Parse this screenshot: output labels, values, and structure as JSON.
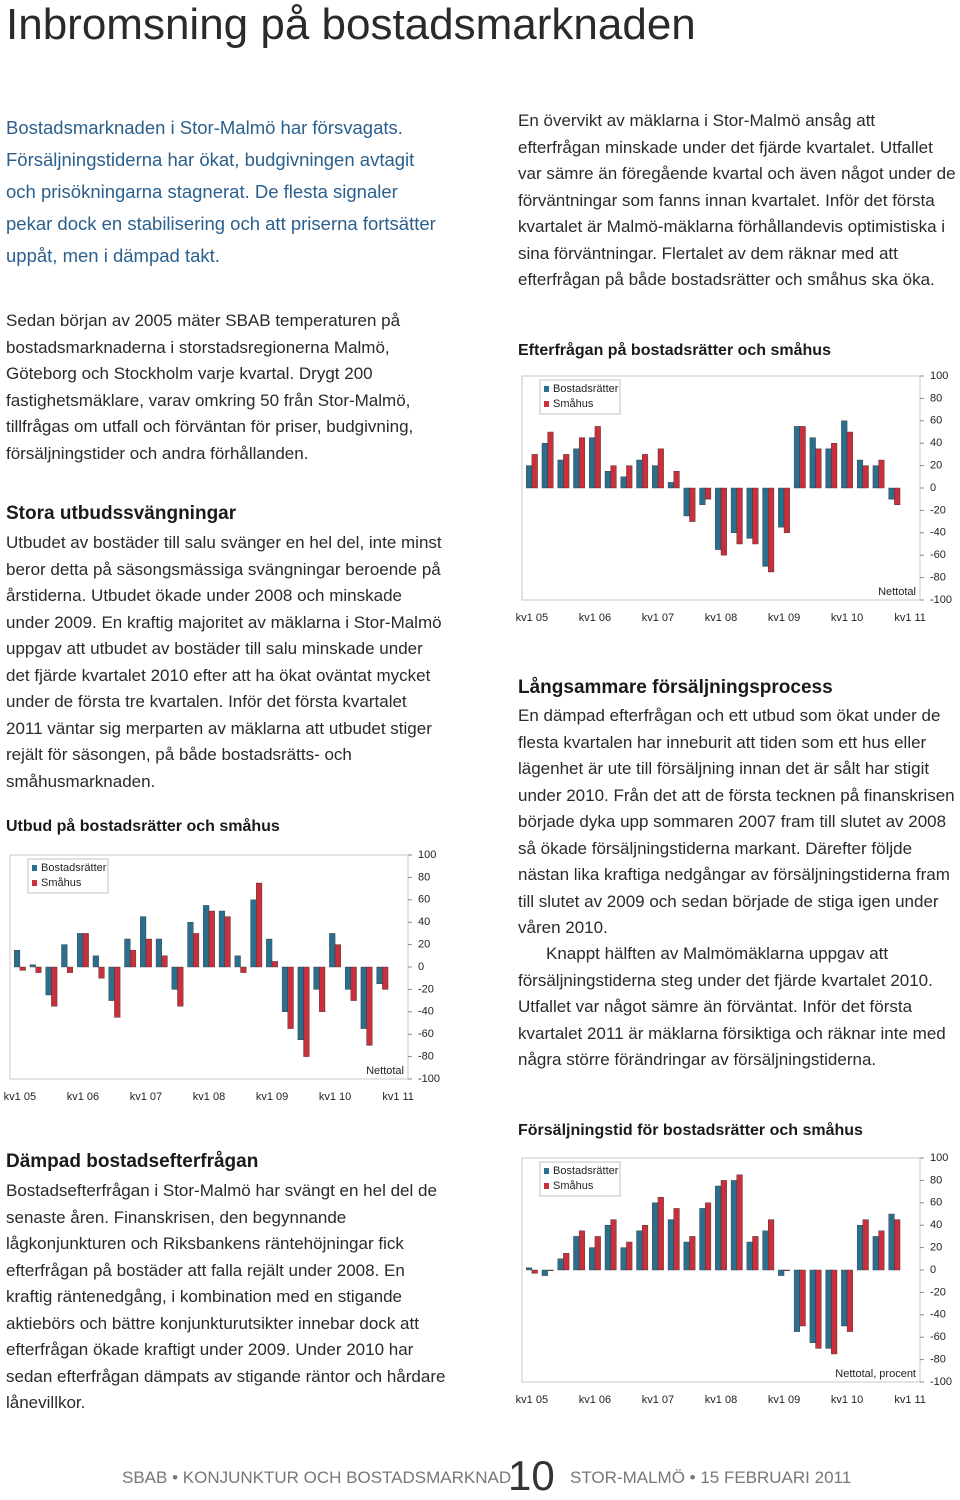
{
  "header": {
    "title": "Inbromsning på bostadsmarknaden"
  },
  "left": {
    "lead": "Bostadsmarknaden i Stor-Malmö har försvagats. Försäljningstiderna har ökat, budgivningen avtagit och prisökningarna stagnerat. De flesta signaler pekar dock en stabilisering och att priserna fortsätter uppåt, men i dämpad takt.",
    "intro": "Sedan början av 2005 mäter SBAB temperaturen på bostadsmarknaderna i storstadsregionerna Malmö, Göteborg och Stockholm varje kvartal. Drygt 200 fastighetsmäklare, varav omkring 50 från Stor-Malmö, tillfrågas om utfall och förväntan för priser, budgivning, försäljningstider och andra förhållanden.",
    "section1": {
      "heading": "Stora utbudssvängningar",
      "text": "Utbudet av bostäder till salu svänger en hel del, inte minst beror detta på säsongsmässiga svängningar beroende på årstiderna. Utbudet ökade under 2008 och minskade under 2009. En kraftig majoritet av mäklarna i Stor-Malmö uppgav att utbudet av bostäder till salu minskade under det fjärde kvartalet 2010 efter att ha ökat oväntat mycket under de första tre kvartalen. Inför det första kvartalet 2011 väntar sig merparten av mäklarna att utbudet stiger rejält för säsongen, på både bostadsrätts- och småhusmarknaden."
    },
    "section2": {
      "heading": "Dämpad bostadsefterfrågan",
      "text": "Bostadsefterfrågan i Stor-Malmö har svängt en hel del de senaste åren. Finanskrisen, den begynnande lågkonjunkturen och Riksbankens räntehöjningar fick efterfrågan på bostäder att falla rejält under 2008. En kraftig räntenedgång, i kombination med en stigande aktiebörs och bättre konjunkturutsikter innebar dock att efterfrågan ökade kraftigt under 2009. Under 2010 har sedan efterfrågan dämpats av stigande räntor och hårdare lånevillkor."
    }
  },
  "right": {
    "intro": "En övervikt av mäklarna i Stor-Malmö ansåg att efterfrågan minskade under det fjärde kvartalet. Utfallet var sämre än föregående kvartal och även något under de förväntningar som fanns innan kvartalet. Inför det första kvartalet är Malmö-mäklarna förhållandevis optimistiska i sina förväntningar. Flertalet av dem räknar med att efterfrågan på både bostadsrätter och småhus ska öka.",
    "section3": {
      "heading": "Långsammare försäljningsprocess",
      "text1": "En dämpad efterfrågan och ett utbud som ökat under de flesta kvartalen har inneburit att tiden som ett hus eller lägenhet är ute till försäljning innan det är sålt har stigit under 2010. Från det att de första tecknen på finanskrisen började dyka upp sommaren 2007 fram till slutet av 2008 så ökade försäljningstiderna markant. Därefter följde nästan lika kraftiga nedgångar av försäljningstiderna fram till slutet av 2009 och sedan började de stiga igen under våren 2010.",
      "text2": "Knappt hälften av Malmömäklarna uppgav att försäljningstiderna steg under det fjärde kvartalet 2010. Utfallet var något sämre än förväntat. Inför det första kvartalet 2011 är mäklarna försiktiga och räknar inte med några större förändringar av försäljningstiderna."
    }
  },
  "footer": {
    "left": "SBAB • KONJUNKTUR OCH BOSTADSMARKNAD",
    "page": "10",
    "right": "STOR-MALMÖ • 15 FEBRUARI 2011"
  },
  "chart_data": [
    {
      "type": "bar",
      "title": "Utbud på bostadsrätter och småhus",
      "annotation": "Nettotal",
      "categories": [
        "kv1 05",
        null,
        null,
        null,
        "kv1 06",
        null,
        null,
        null,
        "kv1 07",
        null,
        null,
        null,
        "kv1 08",
        null,
        null,
        null,
        "kv1 09",
        null,
        null,
        null,
        "kv1 10",
        null,
        null,
        null,
        "kv1 11"
      ],
      "series": [
        {
          "name": "Bostadsrätter",
          "color": "#2b6f8e",
          "values": [
            15,
            2,
            -25,
            20,
            30,
            10,
            -30,
            25,
            45,
            25,
            -20,
            40,
            55,
            50,
            10,
            60,
            25,
            -40,
            -65,
            -20,
            30,
            -20,
            -55,
            -15,
            null
          ]
        },
        {
          "name": "Småhus",
          "color": "#c9303b",
          "values": [
            -3,
            -5,
            -35,
            -5,
            30,
            -10,
            -45,
            15,
            25,
            10,
            -35,
            30,
            50,
            45,
            -5,
            75,
            5,
            -55,
            -80,
            -40,
            20,
            -30,
            -70,
            -20,
            null
          ]
        }
      ],
      "ylim": [
        -100,
        100
      ],
      "yticks": [
        -100,
        -80,
        -60,
        -40,
        -20,
        0,
        20,
        40,
        60,
        80,
        100
      ],
      "legend": "upper left",
      "grid": false
    },
    {
      "type": "bar",
      "title": "Efterfrågan på bostadsrätter och småhus",
      "annotation": "Nettotal",
      "categories": [
        "kv1 05",
        null,
        null,
        null,
        "kv1 06",
        null,
        null,
        null,
        "kv1 07",
        null,
        null,
        null,
        "kv1 08",
        null,
        null,
        null,
        "kv1 09",
        null,
        null,
        null,
        "kv1 10",
        null,
        null,
        null,
        "kv1 11"
      ],
      "series": [
        {
          "name": "Bostadsrätter",
          "color": "#2b6f8e",
          "values": [
            20,
            40,
            25,
            35,
            45,
            15,
            10,
            25,
            20,
            5,
            -25,
            -15,
            -55,
            -40,
            -45,
            -70,
            -35,
            55,
            45,
            35,
            60,
            25,
            20,
            -10,
            null
          ]
        },
        {
          "name": "Småhus",
          "color": "#c9303b",
          "values": [
            30,
            50,
            30,
            45,
            55,
            20,
            20,
            30,
            35,
            15,
            -30,
            -10,
            -60,
            -50,
            -50,
            -75,
            -40,
            55,
            35,
            40,
            50,
            20,
            25,
            -15,
            null
          ]
        }
      ],
      "ylim": [
        -100,
        100
      ],
      "yticks": [
        -100,
        -80,
        -60,
        -40,
        -20,
        0,
        20,
        40,
        60,
        80,
        100
      ],
      "legend": "upper left",
      "grid": false
    },
    {
      "type": "bar",
      "title": "Försäljningstid för bostadsrätter och småhus",
      "annotation": "Nettotal, procent",
      "categories": [
        "kv1 05",
        null,
        null,
        null,
        "kv1 06",
        null,
        null,
        null,
        "kv1 07",
        null,
        null,
        null,
        "kv1 08",
        null,
        null,
        null,
        "kv1 09",
        null,
        null,
        null,
        "kv1 10",
        null,
        null,
        null,
        "kv1 11"
      ],
      "series": [
        {
          "name": "Bostadsrätter",
          "color": "#2b6f8e",
          "values": [
            2,
            -5,
            10,
            30,
            20,
            40,
            20,
            35,
            60,
            45,
            25,
            55,
            75,
            80,
            25,
            35,
            -5,
            -55,
            -65,
            -70,
            -50,
            40,
            30,
            50,
            null
          ]
        },
        {
          "name": "Småhus",
          "color": "#c9303b",
          "values": [
            -3,
            0,
            15,
            35,
            30,
            45,
            25,
            40,
            65,
            55,
            30,
            60,
            80,
            85,
            30,
            45,
            0,
            -50,
            -70,
            -75,
            -55,
            45,
            35,
            45,
            null
          ]
        }
      ],
      "ylim": [
        -100,
        100
      ],
      "yticks": [
        -100,
        -80,
        -60,
        -40,
        -20,
        0,
        20,
        40,
        60,
        80,
        100
      ],
      "legend": "upper left",
      "grid": false
    }
  ]
}
